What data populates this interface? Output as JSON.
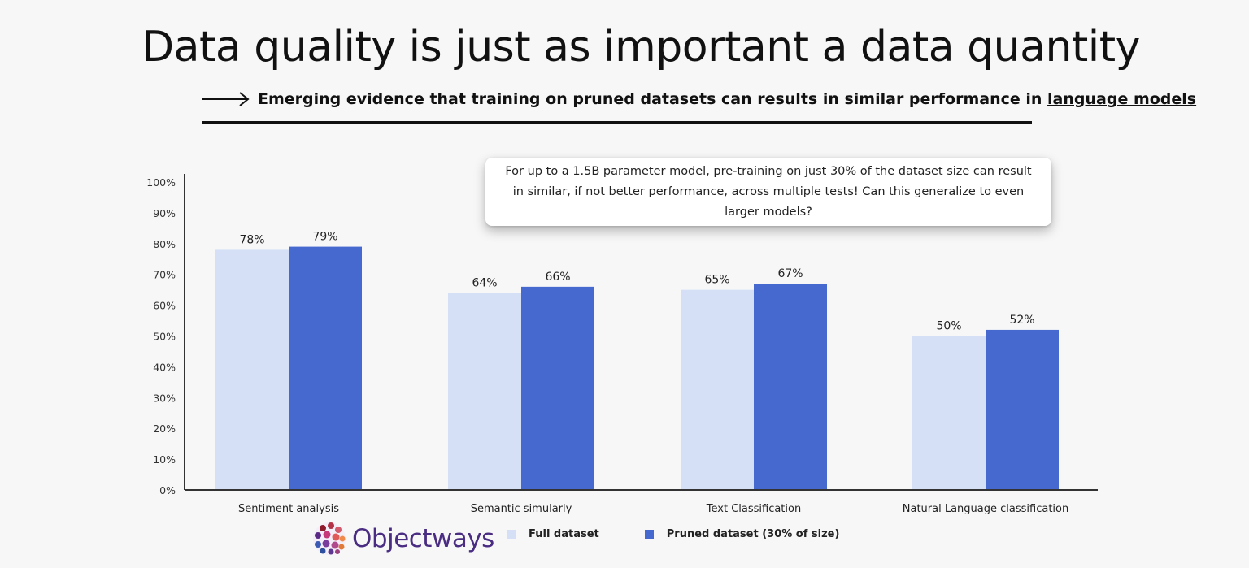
{
  "header": {
    "title": "Data quality is just as important a data quantity",
    "subtitle_main": "Emerging evidence that training on pruned datasets can results in similar performance in ",
    "subtitle_link": "language models"
  },
  "callout": {
    "text": "For up to a 1.5B parameter model, pre-training on just 30% of the dataset size can result in similar, if not better performance, across multiple tests! Can this generalize to even larger models?"
  },
  "brand": {
    "name": "Objectways"
  },
  "colors": {
    "full": "#d5e0f7",
    "pruned": "#4669d0",
    "axis": "#333333",
    "brand": "#4a2d83"
  },
  "chart_data": {
    "type": "bar",
    "categories": [
      "Sentiment analysis",
      "Semantic simularly",
      "Text Classification",
      "Natural Language classification"
    ],
    "series": [
      {
        "name": "Full dataset",
        "values": [
          78,
          64,
          65,
          50
        ],
        "labels": [
          "78%",
          "64%",
          "65%",
          "50%"
        ]
      },
      {
        "name": "Pruned dataset (30% of size)",
        "values": [
          79,
          66,
          67,
          52
        ],
        "labels": [
          "79%",
          "66%",
          "67%",
          "52%"
        ]
      }
    ],
    "yticks": [
      "0%",
      "10%",
      "20%",
      "30%",
      "40%",
      "50%",
      "60%",
      "70%",
      "80%",
      "90%",
      "100%"
    ],
    "ylim": [
      0,
      100
    ],
    "legend": "bottom",
    "grid": false
  }
}
